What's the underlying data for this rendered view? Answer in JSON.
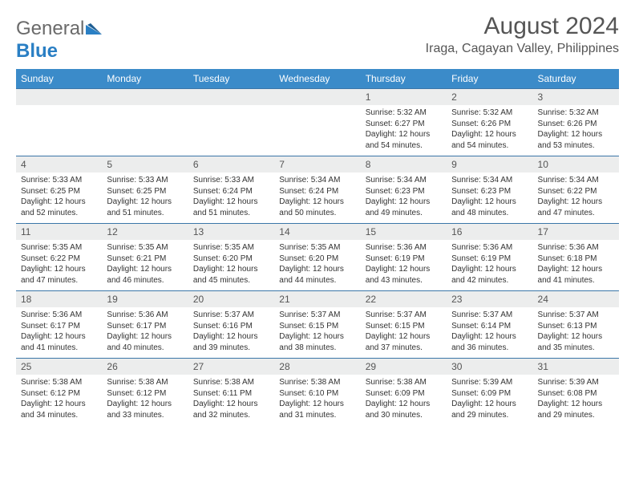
{
  "logo": {
    "text1": "General",
    "text2": "Blue"
  },
  "title": "August 2024",
  "location": "Iraga, Cagayan Valley, Philippines",
  "colors": {
    "header_bg": "#3b8bc9",
    "header_text": "#ffffff",
    "daynum_bg": "#eceded",
    "border": "#3b76a8",
    "logo_gray": "#6a6a6a",
    "logo_blue": "#2a7fc4",
    "text": "#333333"
  },
  "dayHeaders": [
    "Sunday",
    "Monday",
    "Tuesday",
    "Wednesday",
    "Thursday",
    "Friday",
    "Saturday"
  ],
  "weeks": [
    [
      null,
      null,
      null,
      null,
      {
        "n": "1",
        "sr": "5:32 AM",
        "ss": "6:27 PM",
        "dl": "12 hours and 54 minutes."
      },
      {
        "n": "2",
        "sr": "5:32 AM",
        "ss": "6:26 PM",
        "dl": "12 hours and 54 minutes."
      },
      {
        "n": "3",
        "sr": "5:32 AM",
        "ss": "6:26 PM",
        "dl": "12 hours and 53 minutes."
      }
    ],
    [
      {
        "n": "4",
        "sr": "5:33 AM",
        "ss": "6:25 PM",
        "dl": "12 hours and 52 minutes."
      },
      {
        "n": "5",
        "sr": "5:33 AM",
        "ss": "6:25 PM",
        "dl": "12 hours and 51 minutes."
      },
      {
        "n": "6",
        "sr": "5:33 AM",
        "ss": "6:24 PM",
        "dl": "12 hours and 51 minutes."
      },
      {
        "n": "7",
        "sr": "5:34 AM",
        "ss": "6:24 PM",
        "dl": "12 hours and 50 minutes."
      },
      {
        "n": "8",
        "sr": "5:34 AM",
        "ss": "6:23 PM",
        "dl": "12 hours and 49 minutes."
      },
      {
        "n": "9",
        "sr": "5:34 AM",
        "ss": "6:23 PM",
        "dl": "12 hours and 48 minutes."
      },
      {
        "n": "10",
        "sr": "5:34 AM",
        "ss": "6:22 PM",
        "dl": "12 hours and 47 minutes."
      }
    ],
    [
      {
        "n": "11",
        "sr": "5:35 AM",
        "ss": "6:22 PM",
        "dl": "12 hours and 47 minutes."
      },
      {
        "n": "12",
        "sr": "5:35 AM",
        "ss": "6:21 PM",
        "dl": "12 hours and 46 minutes."
      },
      {
        "n": "13",
        "sr": "5:35 AM",
        "ss": "6:20 PM",
        "dl": "12 hours and 45 minutes."
      },
      {
        "n": "14",
        "sr": "5:35 AM",
        "ss": "6:20 PM",
        "dl": "12 hours and 44 minutes."
      },
      {
        "n": "15",
        "sr": "5:36 AM",
        "ss": "6:19 PM",
        "dl": "12 hours and 43 minutes."
      },
      {
        "n": "16",
        "sr": "5:36 AM",
        "ss": "6:19 PM",
        "dl": "12 hours and 42 minutes."
      },
      {
        "n": "17",
        "sr": "5:36 AM",
        "ss": "6:18 PM",
        "dl": "12 hours and 41 minutes."
      }
    ],
    [
      {
        "n": "18",
        "sr": "5:36 AM",
        "ss": "6:17 PM",
        "dl": "12 hours and 41 minutes."
      },
      {
        "n": "19",
        "sr": "5:36 AM",
        "ss": "6:17 PM",
        "dl": "12 hours and 40 minutes."
      },
      {
        "n": "20",
        "sr": "5:37 AM",
        "ss": "6:16 PM",
        "dl": "12 hours and 39 minutes."
      },
      {
        "n": "21",
        "sr": "5:37 AM",
        "ss": "6:15 PM",
        "dl": "12 hours and 38 minutes."
      },
      {
        "n": "22",
        "sr": "5:37 AM",
        "ss": "6:15 PM",
        "dl": "12 hours and 37 minutes."
      },
      {
        "n": "23",
        "sr": "5:37 AM",
        "ss": "6:14 PM",
        "dl": "12 hours and 36 minutes."
      },
      {
        "n": "24",
        "sr": "5:37 AM",
        "ss": "6:13 PM",
        "dl": "12 hours and 35 minutes."
      }
    ],
    [
      {
        "n": "25",
        "sr": "5:38 AM",
        "ss": "6:12 PM",
        "dl": "12 hours and 34 minutes."
      },
      {
        "n": "26",
        "sr": "5:38 AM",
        "ss": "6:12 PM",
        "dl": "12 hours and 33 minutes."
      },
      {
        "n": "27",
        "sr": "5:38 AM",
        "ss": "6:11 PM",
        "dl": "12 hours and 32 minutes."
      },
      {
        "n": "28",
        "sr": "5:38 AM",
        "ss": "6:10 PM",
        "dl": "12 hours and 31 minutes."
      },
      {
        "n": "29",
        "sr": "5:38 AM",
        "ss": "6:09 PM",
        "dl": "12 hours and 30 minutes."
      },
      {
        "n": "30",
        "sr": "5:39 AM",
        "ss": "6:09 PM",
        "dl": "12 hours and 29 minutes."
      },
      {
        "n": "31",
        "sr": "5:39 AM",
        "ss": "6:08 PM",
        "dl": "12 hours and 29 minutes."
      }
    ]
  ],
  "labels": {
    "sunrise": "Sunrise:",
    "sunset": "Sunset:",
    "daylight": "Daylight:"
  }
}
